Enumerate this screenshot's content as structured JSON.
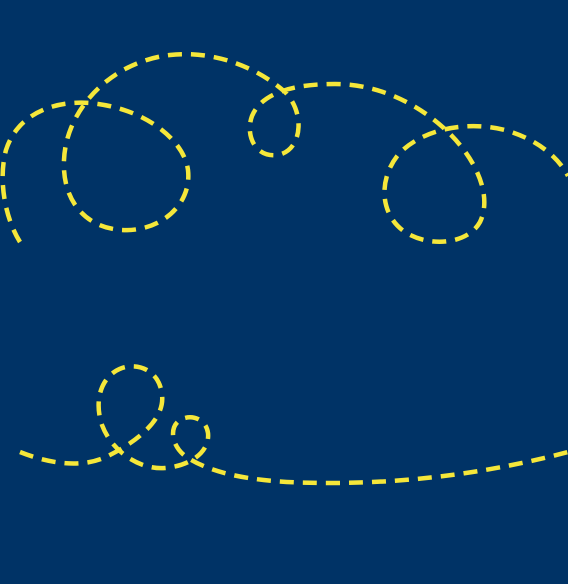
{
  "colors": {
    "background": "#003366",
    "dash": "#F5E73A"
  }
}
